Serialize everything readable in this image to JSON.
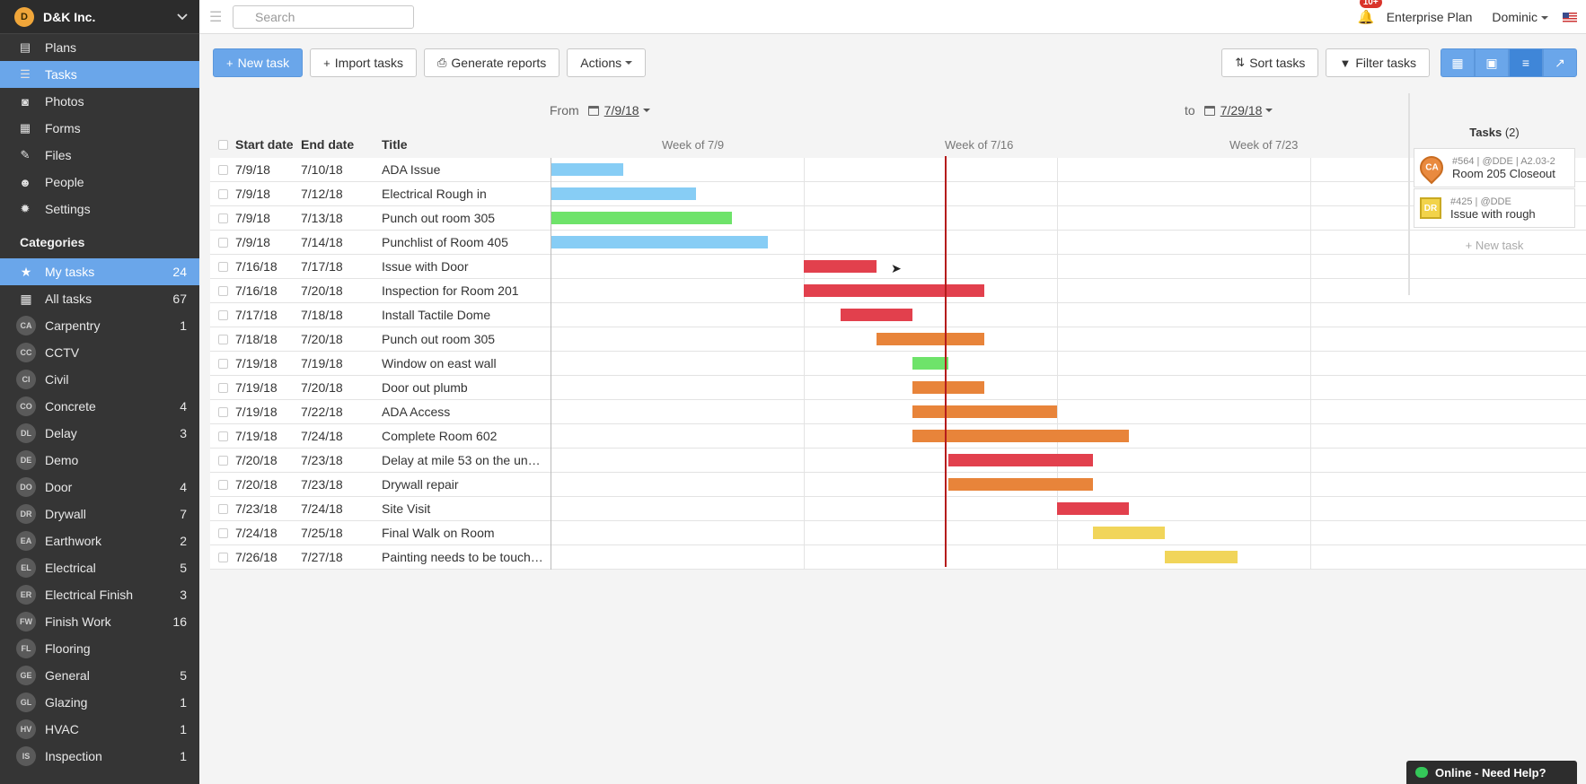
{
  "org": {
    "name": "D&K Inc.",
    "logo": "D"
  },
  "nav": [
    {
      "label": "Plans",
      "icon": "plans-icon",
      "glyph": "▤"
    },
    {
      "label": "Tasks",
      "icon": "tasks-icon",
      "glyph": "☰",
      "active": true
    },
    {
      "label": "Photos",
      "icon": "camera-icon",
      "glyph": "◙"
    },
    {
      "label": "Forms",
      "icon": "forms-icon",
      "glyph": "▦"
    },
    {
      "label": "Files",
      "icon": "paperclip-icon",
      "glyph": "✎"
    },
    {
      "label": "People",
      "icon": "people-icon",
      "glyph": "☻"
    },
    {
      "label": "Settings",
      "icon": "gear-icon",
      "glyph": "✹"
    }
  ],
  "categories_title": "Categories",
  "categories": [
    {
      "abbr": "",
      "label": "My tasks",
      "count": "24",
      "active": true,
      "icon": "star-icon",
      "glyph": "★"
    },
    {
      "abbr": "",
      "label": "All tasks",
      "count": "67",
      "icon": "grid-icon",
      "glyph": "▦"
    },
    {
      "abbr": "CA",
      "label": "Carpentry",
      "count": "1"
    },
    {
      "abbr": "CC",
      "label": "CCTV",
      "count": ""
    },
    {
      "abbr": "CI",
      "label": "Civil",
      "count": ""
    },
    {
      "abbr": "CO",
      "label": "Concrete",
      "count": "4"
    },
    {
      "abbr": "DL",
      "label": "Delay",
      "count": "3"
    },
    {
      "abbr": "DE",
      "label": "Demo",
      "count": ""
    },
    {
      "abbr": "DO",
      "label": "Door",
      "count": "4"
    },
    {
      "abbr": "DR",
      "label": "Drywall",
      "count": "7"
    },
    {
      "abbr": "EA",
      "label": "Earthwork",
      "count": "2"
    },
    {
      "abbr": "EL",
      "label": "Electrical",
      "count": "5"
    },
    {
      "abbr": "ER",
      "label": "Electrical Finish",
      "count": "3"
    },
    {
      "abbr": "FW",
      "label": "Finish Work",
      "count": "16"
    },
    {
      "abbr": "FL",
      "label": "Flooring",
      "count": ""
    },
    {
      "abbr": "GE",
      "label": "General",
      "count": "5"
    },
    {
      "abbr": "GL",
      "label": "Glazing",
      "count": "1"
    },
    {
      "abbr": "HV",
      "label": "HVAC",
      "count": "1"
    },
    {
      "abbr": "IS",
      "label": "Inspection",
      "count": "1"
    }
  ],
  "search": {
    "placeholder": "Search"
  },
  "topbar": {
    "notifications": "10+",
    "plan": "Enterprise Plan",
    "user": "Dominic"
  },
  "toolbar": {
    "new_task": "New task",
    "import_tasks": "Import tasks",
    "generate_reports": "Generate reports",
    "actions": "Actions",
    "sort_tasks": "Sort tasks",
    "filter_tasks": "Filter tasks"
  },
  "range": {
    "from_label": "From",
    "from_date": "7/9/18",
    "to_label": "to",
    "to_date": "7/29/18"
  },
  "columns": {
    "start": "Start date",
    "end": "End date",
    "title": "Title"
  },
  "weeks": [
    "Week of 7/9",
    "Week of 7/16",
    "Week of 7/23"
  ],
  "colors": {
    "blue": "#87cdf5",
    "green": "#6ee36a",
    "red": "#e2404d",
    "orange": "#e8843a",
    "yellow": "#f1d55a",
    "accent": "#6aa6ea",
    "today": "#b51c1c"
  },
  "range_days": {
    "start": "7/9/18",
    "days": 21
  },
  "tasks": [
    {
      "start": "7/9/18",
      "end": "7/10/18",
      "title": "ADA Issue",
      "color": "blue"
    },
    {
      "start": "7/9/18",
      "end": "7/12/18",
      "title": "Electrical Rough in",
      "color": "blue"
    },
    {
      "start": "7/9/18",
      "end": "7/13/18",
      "title": "Punch out room 305",
      "color": "green"
    },
    {
      "start": "7/9/18",
      "end": "7/14/18",
      "title": "Punchlist of Room 405",
      "color": "blue"
    },
    {
      "start": "7/16/18",
      "end": "7/17/18",
      "title": "Issue with Door",
      "color": "red"
    },
    {
      "start": "7/16/18",
      "end": "7/20/18",
      "title": "Inspection for Room 201",
      "color": "red"
    },
    {
      "start": "7/17/18",
      "end": "7/18/18",
      "title": "Install Tactile Dome",
      "color": "red"
    },
    {
      "start": "7/18/18",
      "end": "7/20/18",
      "title": "Punch out room 305",
      "color": "orange"
    },
    {
      "start": "7/19/18",
      "end": "7/19/18",
      "title": "Window on east wall",
      "color": "green"
    },
    {
      "start": "7/19/18",
      "end": "7/20/18",
      "title": "Door out plumb",
      "color": "orange"
    },
    {
      "start": "7/19/18",
      "end": "7/22/18",
      "title": "ADA Access",
      "color": "orange"
    },
    {
      "start": "7/19/18",
      "end": "7/24/18",
      "title": "Complete Room 602",
      "color": "orange"
    },
    {
      "start": "7/20/18",
      "end": "7/23/18",
      "title": "Delay at mile 53 on the underg…",
      "color": "red"
    },
    {
      "start": "7/20/18",
      "end": "7/23/18",
      "title": "Drywall repair",
      "color": "orange"
    },
    {
      "start": "7/23/18",
      "end": "7/24/18",
      "title": "Site Visit",
      "color": "red"
    },
    {
      "start": "7/24/18",
      "end": "7/25/18",
      "title": "Final Walk on Room",
      "color": "yellow"
    },
    {
      "start": "7/26/18",
      "end": "7/27/18",
      "title": "Painting needs to be touched u…",
      "color": "yellow"
    }
  ],
  "panel": {
    "title": "Tasks",
    "count": "(2)",
    "cards": [
      {
        "badge": "CA",
        "meta": "#564 | @DDE | A2.03-2",
        "title": "Room 205 Closeout",
        "shape": "pin"
      },
      {
        "badge": "DR",
        "meta": "#425 | @DDE",
        "title": "Issue with rough",
        "shape": "square"
      }
    ],
    "new_task": "+ New task"
  },
  "help": "Online - Need Help?"
}
